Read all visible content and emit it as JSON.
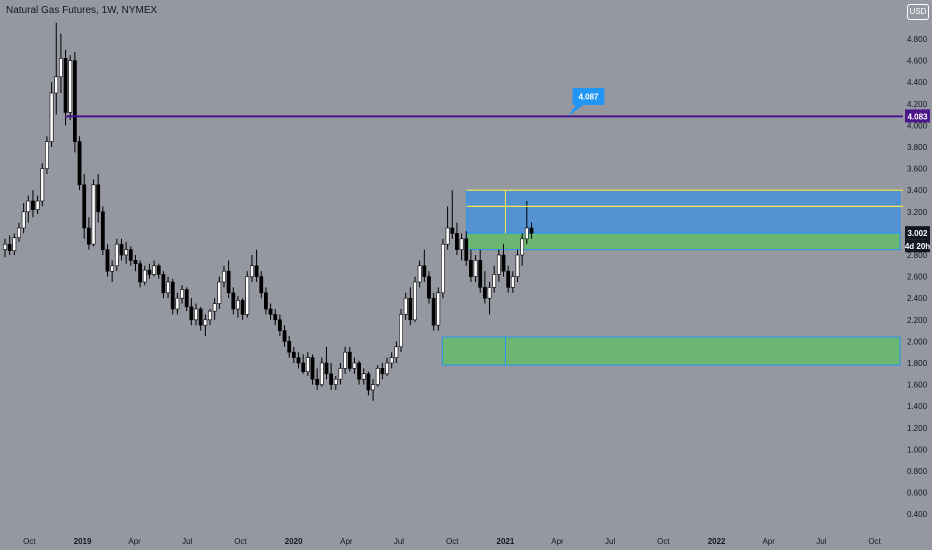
{
  "header": {
    "title": "Natural Gas Futures, 1W, NYMEX",
    "currency": "USD"
  },
  "chart_data": {
    "type": "candlestick",
    "title": "Natural Gas Futures, 1W, NYMEX",
    "ylim": [
      0.3,
      5.05
    ],
    "y_ticks": [
      4.8,
      4.6,
      4.4,
      4.2,
      4.0,
      3.8,
      3.6,
      3.4,
      3.2,
      3.0,
      2.8,
      2.6,
      2.4,
      2.2,
      2.0,
      1.8,
      1.6,
      1.4,
      1.2,
      1.0,
      0.8,
      0.6,
      0.4
    ],
    "y_tick_labels": [
      "4.800",
      "4.600",
      "4.400",
      "4.200",
      "4.000",
      "3.800",
      "3.600",
      "3.400",
      "3.200",
      "3.000",
      "2.800",
      "2.600",
      "2.400",
      "2.200",
      "2.000",
      "1.800",
      "1.600",
      "1.400",
      "1.200",
      "1.000",
      "0.800",
      "0.600",
      "0.400"
    ],
    "x_ticks": [
      {
        "label": "Oct",
        "date": "2018-10-01",
        "bold": false
      },
      {
        "label": "2019",
        "date": "2019-01-01",
        "bold": true
      },
      {
        "label": "Apr",
        "date": "2019-04-01",
        "bold": false
      },
      {
        "label": "Jul",
        "date": "2019-07-01",
        "bold": false
      },
      {
        "label": "Oct",
        "date": "2019-10-01",
        "bold": false
      },
      {
        "label": "2020",
        "date": "2020-01-01",
        "bold": true
      },
      {
        "label": "Apr",
        "date": "2020-04-01",
        "bold": false
      },
      {
        "label": "Jul",
        "date": "2020-07-01",
        "bold": false
      },
      {
        "label": "Oct",
        "date": "2020-10-01",
        "bold": false
      },
      {
        "label": "2021",
        "date": "2021-01-01",
        "bold": true
      },
      {
        "label": "Apr",
        "date": "2021-04-01",
        "bold": false
      },
      {
        "label": "Jul",
        "date": "2021-07-01",
        "bold": false
      },
      {
        "label": "Oct",
        "date": "2021-10-01",
        "bold": false
      },
      {
        "label": "2022",
        "date": "2022-01-01",
        "bold": true
      },
      {
        "label": "Apr",
        "date": "2022-04-01",
        "bold": false
      },
      {
        "label": "Jul",
        "date": "2022-07-01",
        "bold": false
      },
      {
        "label": "Oct",
        "date": "2022-10-01",
        "bold": false
      }
    ],
    "x_range": [
      "2018-08-20",
      "2022-11-14"
    ],
    "candle_weeks": [
      "2018-08-20",
      "2021-02-15"
    ],
    "candles": [
      [
        2.85,
        2.95,
        2.78,
        2.9
      ],
      [
        2.9,
        2.98,
        2.8,
        2.84
      ],
      [
        2.84,
        3.0,
        2.8,
        2.96
      ],
      [
        2.96,
        3.1,
        2.92,
        3.05
      ],
      [
        3.05,
        3.28,
        3.0,
        3.2
      ],
      [
        3.2,
        3.35,
        3.1,
        3.3
      ],
      [
        3.3,
        3.4,
        3.15,
        3.22
      ],
      [
        3.22,
        3.35,
        3.18,
        3.3
      ],
      [
        3.3,
        3.65,
        3.25,
        3.6
      ],
      [
        3.6,
        3.9,
        3.55,
        3.85
      ],
      [
        3.85,
        4.4,
        3.8,
        4.3
      ],
      [
        4.3,
        4.95,
        4.1,
        4.45
      ],
      [
        4.45,
        4.85,
        4.3,
        4.62
      ],
      [
        4.62,
        4.7,
        4.0,
        4.12
      ],
      [
        4.12,
        4.65,
        4.05,
        4.6
      ],
      [
        4.6,
        4.68,
        3.75,
        3.85
      ],
      [
        3.85,
        3.9,
        3.4,
        3.45
      ],
      [
        3.45,
        3.55,
        2.95,
        3.05
      ],
      [
        3.05,
        3.15,
        2.85,
        2.9
      ],
      [
        2.9,
        3.5,
        2.88,
        3.45
      ],
      [
        3.45,
        3.55,
        3.1,
        3.2
      ],
      [
        3.2,
        3.25,
        2.8,
        2.85
      ],
      [
        2.85,
        2.9,
        2.6,
        2.65
      ],
      [
        2.65,
        2.75,
        2.55,
        2.7
      ],
      [
        2.7,
        2.95,
        2.65,
        2.9
      ],
      [
        2.9,
        2.95,
        2.75,
        2.8
      ],
      [
        2.8,
        2.92,
        2.72,
        2.85
      ],
      [
        2.85,
        2.88,
        2.7,
        2.75
      ],
      [
        2.75,
        2.8,
        2.65,
        2.72
      ],
      [
        2.72,
        2.75,
        2.5,
        2.55
      ],
      [
        2.55,
        2.7,
        2.52,
        2.66
      ],
      [
        2.66,
        2.72,
        2.58,
        2.62
      ],
      [
        2.62,
        2.75,
        2.6,
        2.7
      ],
      [
        2.7,
        2.72,
        2.58,
        2.62
      ],
      [
        2.62,
        2.65,
        2.4,
        2.45
      ],
      [
        2.45,
        2.6,
        2.4,
        2.55
      ],
      [
        2.55,
        2.58,
        2.25,
        2.3
      ],
      [
        2.3,
        2.45,
        2.25,
        2.4
      ],
      [
        2.4,
        2.52,
        2.35,
        2.48
      ],
      [
        2.48,
        2.5,
        2.28,
        2.32
      ],
      [
        2.32,
        2.4,
        2.15,
        2.2
      ],
      [
        2.2,
        2.35,
        2.15,
        2.3
      ],
      [
        2.3,
        2.32,
        2.1,
        2.15
      ],
      [
        2.15,
        2.25,
        2.05,
        2.2
      ],
      [
        2.2,
        2.3,
        2.15,
        2.28
      ],
      [
        2.28,
        2.4,
        2.2,
        2.35
      ],
      [
        2.35,
        2.6,
        2.3,
        2.55
      ],
      [
        2.55,
        2.7,
        2.5,
        2.65
      ],
      [
        2.65,
        2.75,
        2.4,
        2.45
      ],
      [
        2.45,
        2.5,
        2.25,
        2.3
      ],
      [
        2.3,
        2.42,
        2.22,
        2.38
      ],
      [
        2.38,
        2.4,
        2.2,
        2.25
      ],
      [
        2.25,
        2.65,
        2.22,
        2.6
      ],
      [
        2.6,
        2.8,
        2.55,
        2.7
      ],
      [
        2.7,
        2.85,
        2.55,
        2.6
      ],
      [
        2.6,
        2.65,
        2.4,
        2.45
      ],
      [
        2.45,
        2.5,
        2.25,
        2.3
      ],
      [
        2.3,
        2.35,
        2.2,
        2.25
      ],
      [
        2.25,
        2.3,
        2.15,
        2.2
      ],
      [
        2.2,
        2.25,
        2.05,
        2.1
      ],
      [
        2.1,
        2.15,
        1.95,
        2.0
      ],
      [
        2.0,
        2.05,
        1.85,
        1.9
      ],
      [
        1.9,
        1.95,
        1.8,
        1.85
      ],
      [
        1.85,
        1.9,
        1.75,
        1.8
      ],
      [
        1.8,
        1.88,
        1.7,
        1.72
      ],
      [
        1.72,
        1.9,
        1.68,
        1.85
      ],
      [
        1.85,
        1.88,
        1.6,
        1.65
      ],
      [
        1.65,
        1.75,
        1.55,
        1.6
      ],
      [
        1.6,
        1.85,
        1.58,
        1.8
      ],
      [
        1.8,
        1.95,
        1.65,
        1.7
      ],
      [
        1.7,
        1.8,
        1.55,
        1.6
      ],
      [
        1.6,
        1.68,
        1.55,
        1.65
      ],
      [
        1.65,
        1.8,
        1.6,
        1.75
      ],
      [
        1.75,
        1.95,
        1.7,
        1.9
      ],
      [
        1.9,
        1.95,
        1.72,
        1.75
      ],
      [
        1.75,
        1.85,
        1.7,
        1.8
      ],
      [
        1.8,
        1.82,
        1.6,
        1.65
      ],
      [
        1.65,
        1.75,
        1.6,
        1.7
      ],
      [
        1.7,
        1.72,
        1.5,
        1.55
      ],
      [
        1.55,
        1.65,
        1.45,
        1.6
      ],
      [
        1.6,
        1.78,
        1.58,
        1.75
      ],
      [
        1.75,
        1.8,
        1.65,
        1.7
      ],
      [
        1.7,
        1.85,
        1.68,
        1.8
      ],
      [
        1.8,
        1.9,
        1.75,
        1.85
      ],
      [
        1.85,
        2.0,
        1.8,
        1.95
      ],
      [
        1.95,
        2.3,
        1.9,
        2.25
      ],
      [
        2.25,
        2.45,
        2.2,
        2.4
      ],
      [
        2.4,
        2.5,
        2.15,
        2.2
      ],
      [
        2.2,
        2.6,
        2.18,
        2.55
      ],
      [
        2.55,
        2.75,
        2.5,
        2.7
      ],
      [
        2.7,
        2.85,
        2.55,
        2.6
      ],
      [
        2.6,
        2.65,
        2.35,
        2.4
      ],
      [
        2.4,
        2.45,
        2.1,
        2.15
      ],
      [
        2.15,
        2.5,
        2.1,
        2.45
      ],
      [
        2.45,
        2.95,
        2.4,
        2.9
      ],
      [
        2.9,
        3.25,
        2.85,
        3.05
      ],
      [
        3.05,
        3.4,
        2.95,
        3.0
      ],
      [
        3.0,
        3.1,
        2.8,
        2.85
      ],
      [
        2.85,
        3.0,
        2.75,
        2.95
      ],
      [
        2.95,
        3.02,
        2.7,
        2.75
      ],
      [
        2.75,
        2.85,
        2.55,
        2.6
      ],
      [
        2.6,
        2.8,
        2.55,
        2.75
      ],
      [
        2.75,
        2.85,
        2.45,
        2.5
      ],
      [
        2.5,
        2.65,
        2.35,
        2.4
      ],
      [
        2.4,
        2.55,
        2.25,
        2.5
      ],
      [
        2.5,
        2.7,
        2.45,
        2.62
      ],
      [
        2.62,
        2.85,
        2.55,
        2.8
      ],
      [
        2.8,
        2.9,
        2.6,
        2.65
      ],
      [
        2.65,
        2.7,
        2.45,
        2.5
      ],
      [
        2.5,
        2.65,
        2.45,
        2.6
      ],
      [
        2.6,
        2.85,
        2.55,
        2.8
      ],
      [
        2.8,
        3.0,
        2.7,
        2.95
      ],
      [
        2.95,
        3.3,
        2.9,
        3.05
      ],
      [
        3.05,
        3.1,
        2.95,
        3.0
      ]
    ],
    "horizontal_line": {
      "value": 4.083,
      "color": "#4a148c",
      "label": "4.083"
    },
    "callout": {
      "label": "4.087",
      "date": "2021-04-20",
      "value": 4.087,
      "color": "#2196f3"
    },
    "zones": [
      {
        "name": "blue-resistance-zone",
        "from": "2020-10-26",
        "to": "2022-11-14",
        "low": 3.002,
        "high": 3.4,
        "color": "#4a90d9"
      },
      {
        "name": "green-zone-upper",
        "from": "2020-10-26",
        "to": "2022-11-14",
        "low": 2.85,
        "high": 3.002,
        "color": "#66bb6a"
      },
      {
        "name": "green-demand-zone",
        "from": "2020-09-14",
        "to": "2022-11-14",
        "low": 1.78,
        "high": 2.04,
        "color": "#66bb6a"
      }
    ],
    "annotation_lines": [
      {
        "name": "yellow-top-line",
        "from": "2020-10-26",
        "to": "2022-11-14",
        "value": 3.4,
        "color": "#ffeb3b"
      },
      {
        "name": "yellow-mid-line",
        "from": "2020-10-26",
        "to": "2022-11-14",
        "value": 3.25,
        "color": "#ffeb3b"
      },
      {
        "name": "yellow-vertical-line",
        "date": "2021-01-01",
        "low": 3.0,
        "high": 3.4,
        "color": "#ffeb3b"
      },
      {
        "name": "blue-vertical-line",
        "date": "2021-01-01",
        "low": 1.78,
        "high": 2.04,
        "color": "#2196f3"
      }
    ],
    "price_labels": [
      {
        "value": 4.083,
        "label": "4.083",
        "color": "#4a148c"
      },
      {
        "value": 3.002,
        "label": "3.002",
        "color": "#131722"
      }
    ],
    "countdown": {
      "label": "4d 20h",
      "color": "#131722"
    },
    "grid": false
  }
}
